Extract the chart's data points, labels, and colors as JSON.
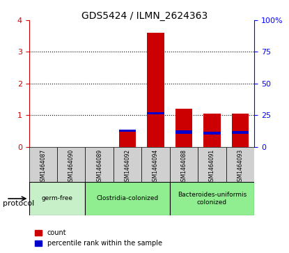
{
  "title": "GDS5424 / ILMN_2624363",
  "samples": [
    "GSM1464087",
    "GSM1464090",
    "GSM1464089",
    "GSM1464092",
    "GSM1464094",
    "GSM1464088",
    "GSM1464091",
    "GSM1464093"
  ],
  "red_values": [
    0.0,
    0.0,
    0.0,
    0.55,
    3.6,
    1.2,
    1.05,
    1.05
  ],
  "blue_values": [
    0.0,
    0.0,
    0.0,
    0.08,
    0.08,
    0.12,
    0.1,
    0.1
  ],
  "blue_bottom": [
    0.0,
    0.0,
    0.0,
    0.47,
    1.02,
    0.4,
    0.38,
    0.4
  ],
  "ylim_left": [
    0,
    4
  ],
  "ylim_right": [
    0,
    100
  ],
  "yticks_left": [
    0,
    1,
    2,
    3,
    4
  ],
  "yticks_right": [
    0,
    25,
    50,
    75,
    100
  ],
  "ytick_labels_right": [
    "0",
    "25",
    "50",
    "75",
    "100%"
  ],
  "ytick_labels_left": [
    "0",
    "1",
    "2",
    "3",
    "4"
  ],
  "groups": [
    {
      "label": "germ-free",
      "indices": [
        0,
        1
      ],
      "color": "#c8f0c8"
    },
    {
      "label": "Clostridia-colonized",
      "indices": [
        2,
        3,
        4
      ],
      "color": "#90ee90"
    },
    {
      "label": "Bacteroides-uniformis\ncolonized",
      "indices": [
        5,
        6,
        7
      ],
      "color": "#90ee90"
    }
  ],
  "group_spans": [
    {
      "start": 0,
      "end": 1,
      "label": "germ-free",
      "color": "#c8f0c8"
    },
    {
      "start": 2,
      "end": 4,
      "label": "Clostridia-colonized",
      "color": "#90ee90"
    },
    {
      "start": 5,
      "end": 7,
      "label": "Bacteroides-uniformis\ncolonized",
      "color": "#90ee90"
    }
  ],
  "bar_width": 0.6,
  "red_color": "#cc0000",
  "blue_color": "#0000cc",
  "grid_color": "#000000",
  "tick_bg_color": "#d0d0d0",
  "protocol_label": "protocol",
  "legend_items": [
    "count",
    "percentile rank within the sample"
  ]
}
